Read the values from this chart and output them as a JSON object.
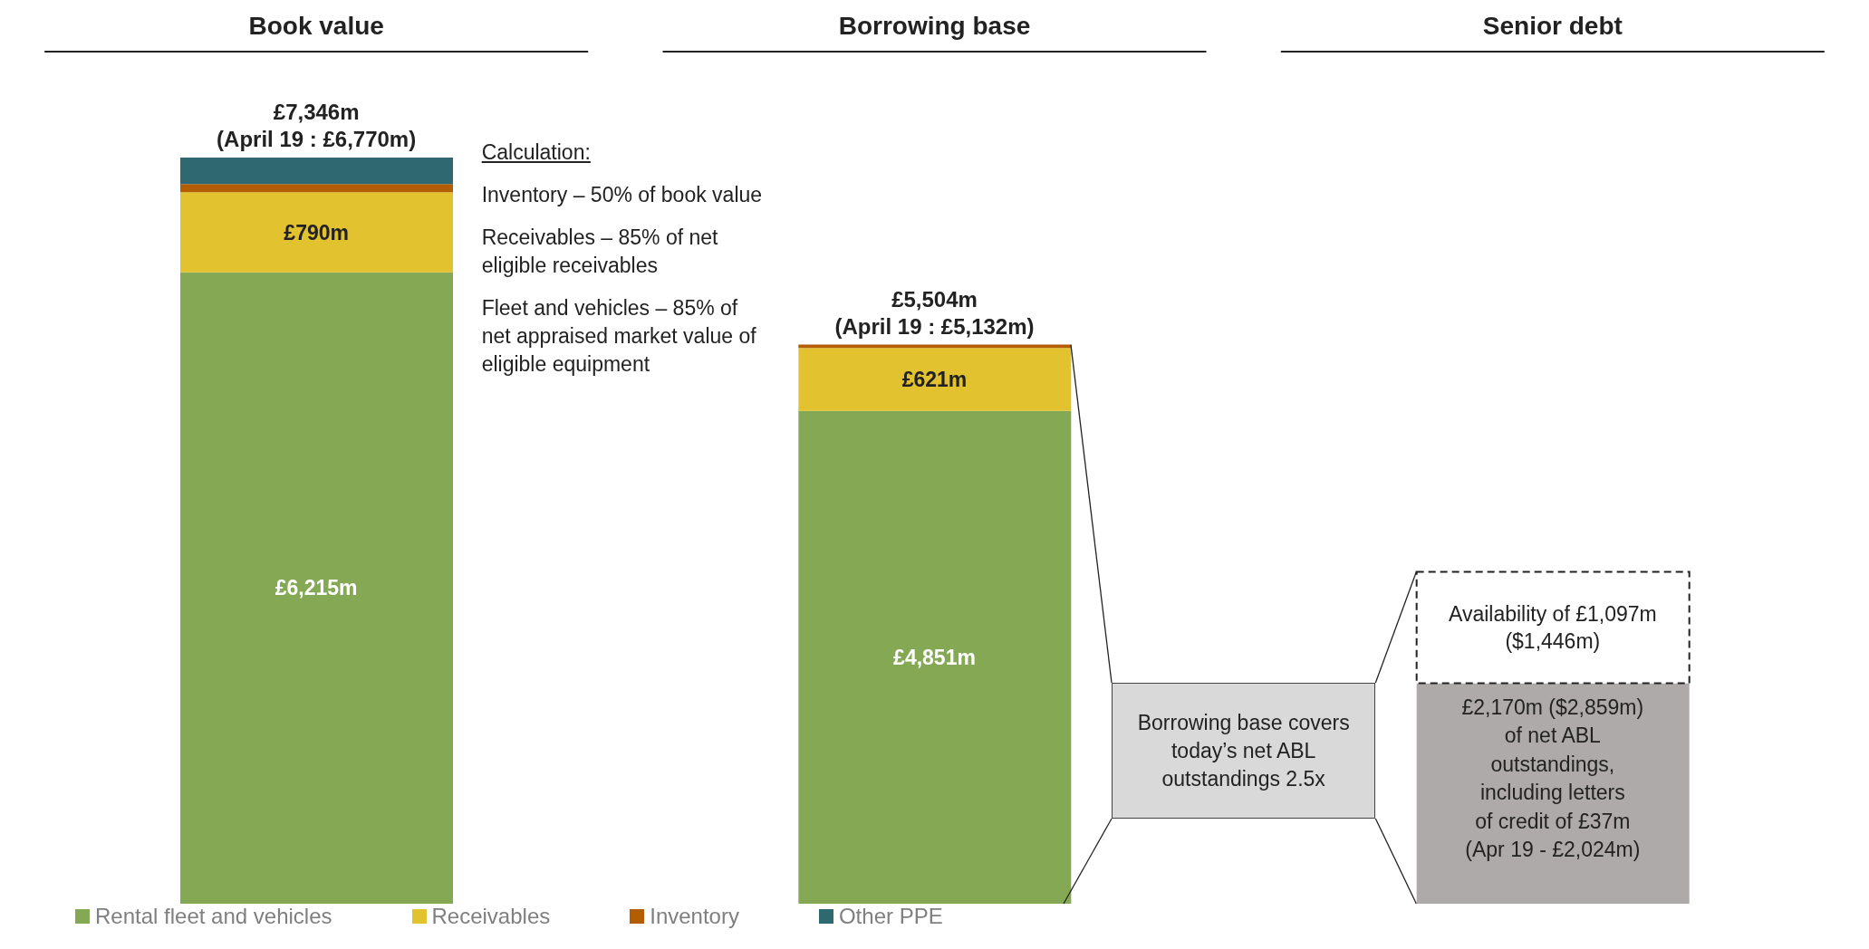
{
  "chart_data": {
    "type": "bar",
    "stacked": true,
    "categories": [
      "Book value",
      "Borrowing base",
      "Senior debt"
    ],
    "series": [
      {
        "name": "Rental fleet and vehicles",
        "color": "#84a853",
        "values": [
          6215,
          4851,
          null
        ],
        "value_labels": [
          "£6,215m",
          "£4,851m",
          null
        ]
      },
      {
        "name": "Receivables",
        "color": "#e2c22f",
        "values": [
          790,
          621,
          null
        ],
        "value_labels": [
          "£790m",
          "£621m",
          null
        ]
      },
      {
        "name": "Inventory",
        "color": "#b35c00",
        "values": [
          81,
          32,
          null
        ]
      },
      {
        "name": "Other PPE",
        "color": "#2f6870",
        "values": [
          260,
          null,
          null
        ]
      },
      {
        "color": "#aeaaaa",
        "values": [
          null,
          null,
          2170
        ]
      },
      {
        "color": "#ffffff",
        "line_style": "dashed",
        "values": [
          null,
          null,
          1097
        ],
        "value_labels": [
          null,
          null,
          "Availability of £1,097m ($1,446m)"
        ]
      }
    ],
    "totals": [
      "£7,346m\n(April 19 : £6,770m)",
      "£5,504m\n(April 19 : £5,132m)",
      null
    ],
    "annotations": [
      "Calculation:",
      "Inventory – 50% of book value",
      "Receivables – 85% of net eligible receivables",
      "Fleet and vehicles – 85% of net appraised market value of eligible equipment",
      "Borrowing base covers today’s net ABL outstandings 2.5x",
      "£2,170m ($2,859m) of net ABL outstandings, including letters of credit of £37m (Apr 19 - £2,024m)"
    ],
    "legend": "bottom left"
  }
}
